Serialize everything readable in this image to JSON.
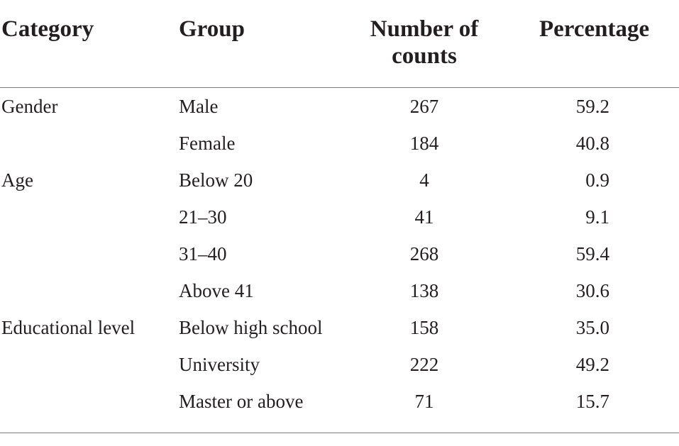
{
  "table": {
    "headers": {
      "category": "Category",
      "group": "Group",
      "count_line1": "Number of",
      "count_line2": "counts",
      "percentage": "Percentage"
    },
    "rows": [
      {
        "category": "Gender",
        "group": "Male",
        "count": "267",
        "percentage": "59.2"
      },
      {
        "category": "",
        "group": "Female",
        "count": "184",
        "percentage": "40.8"
      },
      {
        "category": "Age",
        "group": "Below 20",
        "count": "4",
        "percentage": "0.9"
      },
      {
        "category": "",
        "group": "21–30",
        "count": "41",
        "percentage": "9.1"
      },
      {
        "category": "",
        "group": "31–40",
        "count": "268",
        "percentage": "59.4"
      },
      {
        "category": "",
        "group": "Above 41",
        "count": "138",
        "percentage": "30.6"
      },
      {
        "category": "Educational level",
        "group": "Below high school",
        "count": "158",
        "percentage": "35.0"
      },
      {
        "category": "",
        "group": "University",
        "count": "222",
        "percentage": "49.2"
      },
      {
        "category": "",
        "group": "Master or above",
        "count": "71",
        "percentage": "15.7"
      }
    ]
  }
}
